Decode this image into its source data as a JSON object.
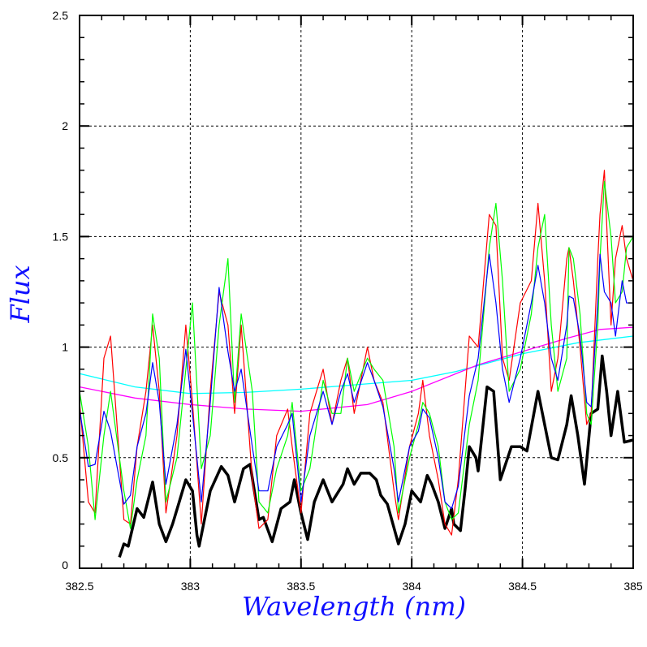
{
  "chart_data": {
    "type": "line",
    "title": "",
    "xlabel": "Wavelength (nm)",
    "ylabel": "Flux",
    "xlim": [
      382.5,
      385
    ],
    "ylim": [
      0,
      2.5
    ],
    "grid": true,
    "xticks": [
      "382.5",
      "383",
      "383.5",
      "384",
      "384.5",
      "385"
    ],
    "xtick_values": [
      382.5,
      383,
      383.5,
      384,
      384.5,
      385
    ],
    "yticks": [
      "0",
      "0.5",
      "1",
      "1.5",
      "2",
      "2.5"
    ],
    "ytick_values": [
      0,
      0.5,
      1,
      1.5,
      2,
      2.5
    ],
    "x": [
      382.5,
      382.54,
      382.57,
      382.61,
      382.64,
      382.7,
      382.73,
      382.76,
      382.8,
      382.83,
      382.86,
      382.89,
      382.94,
      382.98,
      383.01,
      383.05,
      383.09,
      383.13,
      383.17,
      383.2,
      383.23,
      383.28,
      383.31,
      383.35,
      383.39,
      383.44,
      383.46,
      383.5,
      383.54,
      383.6,
      383.64,
      383.68,
      383.71,
      383.74,
      383.8,
      383.83,
      383.87,
      383.92,
      383.94,
      383.99,
      384.03,
      384.05,
      384.08,
      384.12,
      384.15,
      384.18,
      384.21,
      384.26,
      384.3,
      384.35,
      384.38,
      384.41,
      384.44,
      384.49,
      384.54,
      384.57,
      384.6,
      384.63,
      384.66,
      384.7,
      384.71,
      384.73,
      384.76,
      384.79,
      384.81,
      384.84,
      384.85,
      384.87,
      384.9,
      384.92,
      384.95,
      384.97,
      385.0
    ],
    "series": [
      {
        "name": "red",
        "color": "#ff0000",
        "values": [
          0.75,
          0.3,
          0.25,
          0.95,
          1.05,
          0.22,
          0.2,
          0.55,
          0.8,
          1.1,
          0.8,
          0.25,
          0.6,
          1.1,
          0.75,
          0.2,
          0.8,
          1.25,
          1.1,
          0.7,
          1.1,
          0.4,
          0.18,
          0.22,
          0.6,
          0.72,
          0.55,
          0.25,
          0.7,
          0.9,
          0.65,
          0.85,
          0.95,
          0.7,
          1.0,
          0.85,
          0.75,
          0.35,
          0.22,
          0.55,
          0.7,
          0.85,
          0.6,
          0.4,
          0.2,
          0.15,
          0.4,
          1.05,
          1.0,
          1.6,
          1.55,
          0.95,
          0.85,
          1.2,
          1.3,
          1.65,
          1.3,
          0.8,
          0.95,
          1.4,
          1.45,
          1.3,
          1.0,
          0.65,
          0.7,
          1.4,
          1.6,
          1.8,
          1.1,
          1.4,
          1.55,
          1.4,
          1.3
        ]
      },
      {
        "name": "green",
        "color": "#00ff00",
        "values": [
          0.8,
          0.55,
          0.22,
          0.6,
          0.8,
          0.35,
          0.18,
          0.4,
          0.6,
          1.15,
          0.95,
          0.3,
          0.5,
          0.9,
          1.2,
          0.45,
          0.6,
          1.1,
          1.4,
          0.75,
          1.15,
          0.8,
          0.3,
          0.25,
          0.45,
          0.6,
          0.75,
          0.35,
          0.45,
          0.85,
          0.7,
          0.7,
          0.95,
          0.8,
          0.95,
          0.9,
          0.85,
          0.55,
          0.25,
          0.5,
          0.65,
          0.75,
          0.7,
          0.55,
          0.3,
          0.22,
          0.25,
          0.65,
          0.85,
          1.45,
          1.65,
          1.3,
          0.8,
          0.9,
          1.15,
          1.45,
          1.6,
          1.1,
          0.8,
          0.95,
          1.45,
          1.4,
          1.15,
          0.7,
          0.65,
          1.1,
          1.4,
          1.75,
          1.5,
          1.2,
          1.25,
          1.45,
          1.5
        ]
      },
      {
        "name": "blue",
        "color": "#0000ff",
        "values": [
          0.72,
          0.46,
          0.47,
          0.71,
          0.62,
          0.29,
          0.33,
          0.55,
          0.7,
          0.93,
          0.75,
          0.38,
          0.65,
          0.99,
          0.7,
          0.3,
          0.75,
          1.27,
          0.98,
          0.8,
          0.9,
          0.55,
          0.35,
          0.35,
          0.55,
          0.65,
          0.7,
          0.3,
          0.6,
          0.8,
          0.65,
          0.8,
          0.88,
          0.75,
          0.93,
          0.85,
          0.73,
          0.45,
          0.3,
          0.55,
          0.62,
          0.72,
          0.68,
          0.5,
          0.3,
          0.27,
          0.37,
          0.78,
          0.95,
          1.42,
          1.2,
          0.9,
          0.75,
          0.95,
          1.2,
          1.37,
          1.2,
          0.95,
          0.85,
          1.1,
          1.23,
          1.22,
          1.05,
          0.75,
          0.73,
          1.2,
          1.42,
          1.25,
          1.2,
          1.05,
          1.3,
          1.2,
          1.2
        ]
      }
    ],
    "black_series": {
      "name": "black",
      "color": "#000000",
      "points": [
        [
          382.68,
          0.05
        ],
        [
          382.7,
          0.11
        ],
        [
          382.72,
          0.1
        ],
        [
          382.76,
          0.27
        ],
        [
          382.79,
          0.23
        ],
        [
          382.83,
          0.39
        ],
        [
          382.86,
          0.2
        ],
        [
          382.89,
          0.12
        ],
        [
          382.92,
          0.2
        ],
        [
          382.95,
          0.3
        ],
        [
          382.98,
          0.4
        ],
        [
          383.01,
          0.35
        ],
        [
          383.03,
          0.15
        ],
        [
          383.04,
          0.1
        ],
        [
          383.09,
          0.35
        ],
        [
          383.14,
          0.46
        ],
        [
          383.17,
          0.42
        ],
        [
          383.2,
          0.3
        ],
        [
          383.24,
          0.45
        ],
        [
          383.27,
          0.47
        ],
        [
          383.31,
          0.22
        ],
        [
          383.33,
          0.23
        ],
        [
          383.37,
          0.12
        ],
        [
          383.41,
          0.27
        ],
        [
          383.45,
          0.3
        ],
        [
          383.47,
          0.4
        ],
        [
          383.5,
          0.25
        ],
        [
          383.53,
          0.13
        ],
        [
          383.56,
          0.3
        ],
        [
          383.6,
          0.4
        ],
        [
          383.64,
          0.3
        ],
        [
          383.69,
          0.38
        ],
        [
          383.71,
          0.45
        ],
        [
          383.74,
          0.38
        ],
        [
          383.77,
          0.43
        ],
        [
          383.81,
          0.43
        ],
        [
          383.84,
          0.4
        ],
        [
          383.86,
          0.33
        ],
        [
          383.89,
          0.29
        ],
        [
          383.94,
          0.11
        ],
        [
          383.97,
          0.2
        ],
        [
          384.0,
          0.35
        ],
        [
          384.04,
          0.3
        ],
        [
          384.07,
          0.42
        ],
        [
          384.09,
          0.38
        ],
        [
          384.12,
          0.3
        ],
        [
          384.15,
          0.18
        ],
        [
          384.18,
          0.27
        ],
        [
          384.19,
          0.2
        ],
        [
          384.22,
          0.17
        ],
        [
          384.24,
          0.35
        ],
        [
          384.26,
          0.55
        ],
        [
          384.29,
          0.5
        ],
        [
          384.3,
          0.44
        ],
        [
          384.34,
          0.82
        ],
        [
          384.37,
          0.8
        ],
        [
          384.4,
          0.4
        ],
        [
          384.45,
          0.55
        ],
        [
          384.49,
          0.55
        ],
        [
          384.52,
          0.53
        ],
        [
          384.57,
          0.8
        ],
        [
          384.6,
          0.65
        ],
        [
          384.63,
          0.5
        ],
        [
          384.66,
          0.49
        ],
        [
          384.7,
          0.65
        ],
        [
          384.72,
          0.78
        ],
        [
          384.75,
          0.6
        ],
        [
          384.78,
          0.38
        ],
        [
          384.81,
          0.7
        ],
        [
          384.84,
          0.72
        ],
        [
          384.86,
          0.96
        ],
        [
          384.88,
          0.8
        ],
        [
          384.9,
          0.6
        ],
        [
          384.93,
          0.8
        ],
        [
          384.96,
          0.57
        ],
        [
          385.0,
          0.58
        ]
      ]
    },
    "smooth_curves": [
      {
        "name": "cyan",
        "color": "#00ffff",
        "points": [
          [
            382.5,
            0.88
          ],
          [
            382.75,
            0.82
          ],
          [
            383.0,
            0.79
          ],
          [
            383.25,
            0.795
          ],
          [
            383.5,
            0.81
          ],
          [
            383.75,
            0.83
          ],
          [
            384.0,
            0.85
          ],
          [
            384.2,
            0.89
          ],
          [
            384.5,
            0.97
          ],
          [
            384.75,
            1.02
          ],
          [
            385.0,
            1.05
          ]
        ]
      },
      {
        "name": "magenta",
        "color": "#ff00ff",
        "points": [
          [
            382.5,
            0.82
          ],
          [
            382.75,
            0.77
          ],
          [
            383.0,
            0.74
          ],
          [
            383.25,
            0.72
          ],
          [
            383.5,
            0.71
          ],
          [
            383.8,
            0.74
          ],
          [
            384.0,
            0.8
          ],
          [
            384.3,
            0.92
          ],
          [
            384.5,
            0.98
          ],
          [
            384.7,
            1.04
          ],
          [
            384.85,
            1.08
          ],
          [
            385.0,
            1.09
          ]
        ]
      }
    ]
  }
}
